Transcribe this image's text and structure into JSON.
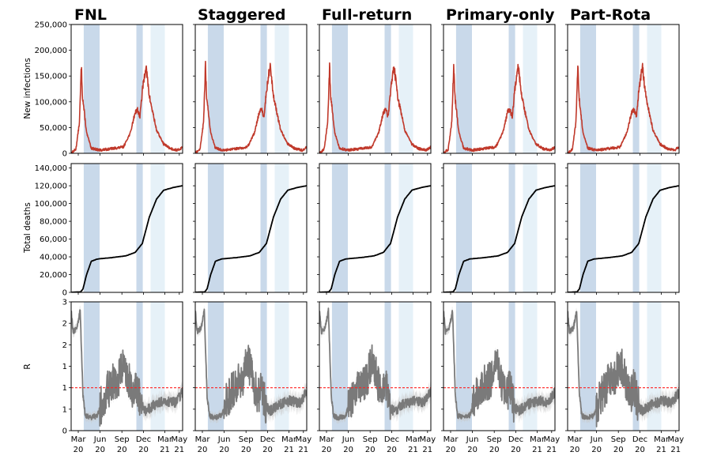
{
  "colors": {
    "lockdown_dark": "#c9d9ea",
    "lockdown_light": "#e6f1f8",
    "infections": "#c0392b",
    "deaths": "#000000",
    "r_line": "#7a7a7a",
    "ci": "#c8c8c8",
    "threshold": "#ff2020"
  },
  "x_axis": {
    "ticks": [
      {
        "month": "Mar",
        "year": "20",
        "day": 60
      },
      {
        "month": "Jun",
        "year": "20",
        "day": 152
      },
      {
        "month": "Sep",
        "year": "20",
        "day": 244
      },
      {
        "month": "Dec",
        "year": "20",
        "day": 335
      },
      {
        "month": "Mar",
        "year": "21",
        "day": 425
      },
      {
        "month": "May",
        "year": "21",
        "day": 486
      }
    ],
    "range_days_from_2020_01_01": [
      30,
      500
    ]
  },
  "shaded_periods": [
    {
      "start_day": 83,
      "end_day": 150,
      "shade": "dark"
    },
    {
      "start_day": 305,
      "end_day": 332,
      "shade": "dark"
    },
    {
      "start_day": 365,
      "end_day": 425,
      "shade": "light"
    }
  ],
  "chart_data": [
    {
      "type": "line",
      "row": "infections",
      "ylabel": "New infections",
      "ylim": [
        0,
        250000
      ],
      "yticks": [
        0,
        50000,
        100000,
        150000,
        200000,
        250000
      ],
      "ytick_labels": [
        "0",
        "50,000",
        "100,000",
        "150,000",
        "200,000",
        "250,000"
      ],
      "grid": false,
      "x_units": "day of year since 2020-01-01",
      "key_points": [
        [
          30,
          0
        ],
        [
          50,
          8000
        ],
        [
          65,
          60000
        ],
        [
          73,
          170000
        ],
        [
          78,
          110000
        ],
        [
          95,
          40000
        ],
        [
          115,
          10000
        ],
        [
          150,
          6000
        ],
        [
          200,
          9000
        ],
        [
          250,
          12000
        ],
        [
          280,
          40000
        ],
        [
          300,
          80000
        ],
        [
          310,
          85000
        ],
        [
          320,
          70000
        ],
        [
          330,
          120000
        ],
        [
          345,
          170000
        ],
        [
          360,
          110000
        ],
        [
          390,
          45000
        ],
        [
          420,
          18000
        ],
        [
          450,
          9000
        ],
        [
          480,
          6000
        ],
        [
          500,
          12000
        ]
      ],
      "series_by_scenario": [
        "FNL",
        "Staggered",
        "Full-return",
        "Primary-only",
        "Part-Rota"
      ]
    },
    {
      "type": "line",
      "row": "deaths",
      "ylabel": "Total deaths",
      "ylim": [
        0,
        145000
      ],
      "yticks": [
        0,
        20000,
        40000,
        60000,
        80000,
        100000,
        120000,
        140000
      ],
      "ytick_labels": [
        "0",
        "20,000",
        "40,000",
        "60,000",
        "80,000",
        "100,000",
        "120,000",
        "140,000"
      ],
      "grid": false,
      "x_units": "day of year since 2020-01-01",
      "key_points": [
        [
          30,
          0
        ],
        [
          70,
          500
        ],
        [
          80,
          4000
        ],
        [
          95,
          20000
        ],
        [
          115,
          35000
        ],
        [
          140,
          37500
        ],
        [
          200,
          39000
        ],
        [
          260,
          41000
        ],
        [
          300,
          45000
        ],
        [
          330,
          55000
        ],
        [
          360,
          85000
        ],
        [
          390,
          105000
        ],
        [
          420,
          115000
        ],
        [
          460,
          118000
        ],
        [
          500,
          120000
        ]
      ],
      "series_by_scenario": [
        "FNL",
        "Staggered",
        "Full-return",
        "Primary-only",
        "Part-Rota"
      ]
    },
    {
      "type": "line",
      "row": "R",
      "ylabel": "R",
      "ylim": [
        0,
        3
      ],
      "yticks": [
        0,
        0.5,
        1,
        1.5,
        2,
        2.5,
        3
      ],
      "ytick_labels": [
        "0",
        "1",
        "1",
        "1",
        "2",
        "2",
        "3"
      ],
      "threshold": 1,
      "grid": false,
      "x_units": "day of year since 2020-01-01",
      "key_points": [
        [
          30,
          2.8
        ],
        [
          38,
          2.3
        ],
        [
          55,
          2.4
        ],
        [
          68,
          2.8
        ],
        [
          80,
          0.8
        ],
        [
          90,
          0.35
        ],
        [
          110,
          0.3
        ],
        [
          140,
          0.35
        ],
        [
          170,
          0.8
        ],
        [
          200,
          1.1
        ],
        [
          230,
          1.2
        ],
        [
          250,
          1.6
        ],
        [
          270,
          1.3
        ],
        [
          290,
          0.8
        ],
        [
          310,
          1.0
        ],
        [
          330,
          0.55
        ],
        [
          345,
          0.45
        ],
        [
          380,
          0.6
        ],
        [
          430,
          0.7
        ],
        [
          470,
          0.65
        ],
        [
          500,
          0.9
        ]
      ],
      "series_by_scenario": [
        "FNL",
        "Staggered",
        "Full-return",
        "Primary-only",
        "Part-Rota"
      ]
    }
  ],
  "scenarios": [
    "FNL",
    "Staggered",
    "Full-return",
    "Primary-only",
    "Part-Rota"
  ]
}
